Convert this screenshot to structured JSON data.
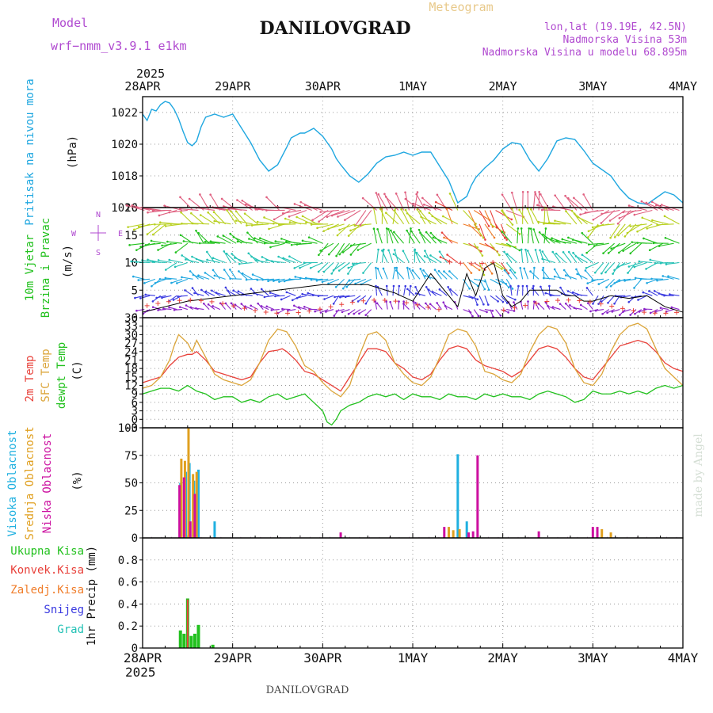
{
  "header": {
    "model_label": "Model",
    "model_name": "wrf−nmm_v3.9.1 e1km",
    "title": "DANILOVGRAD",
    "meteogram_label": "Meteogram",
    "location_line": "lon,lat (19.19E, 42.5N)",
    "altitude_line": "Nadmorska Visina 53m",
    "model_altitude_line": "Nadmorska Visina u modelu 68.895m",
    "year_top": "2025"
  },
  "footer": {
    "year_bottom": "2025",
    "station_label": "DANILOVGRAD",
    "watermark": "made by Angel"
  },
  "colors": {
    "pressure": "#1fa7e0",
    "temp2m": "#e8413a",
    "sfc_temp": "#dba53a",
    "dewpt": "#22c11e",
    "cloud_high": "#1fb0e0",
    "cloud_mid": "#e0a020",
    "cloud_low": "#cc10a0",
    "precip_total": "#22c11e",
    "precip_conv": "#e8413a",
    "precip_frozen": "#f07d2a",
    "precip_snow": "#3a3ae0",
    "precip_hail": "#22c1b5",
    "wind_label": "#22c11e",
    "wind_gust": "#e8413a",
    "wind_speed": "#000000",
    "compass": "#b04ad0"
  },
  "chart_data": [
    {
      "type": "line",
      "panel": "pressure",
      "ylabel_lines": [
        "Pritisak na nivou mora",
        "(hPa)"
      ],
      "ylim": [
        1016,
        1023
      ],
      "yticks": [
        1016,
        1018,
        1020,
        1022
      ],
      "x_unit": "days since 28APR 2025 00UTC",
      "xlim": [
        0,
        6
      ],
      "xticks": [
        "28APR",
        "29APR",
        "30APR",
        "1MAY",
        "2MAY",
        "3MAY",
        "4MAY"
      ],
      "series": [
        {
          "name": "Pritisak na nivou mora",
          "x": [
            0,
            0.05,
            0.1,
            0.15,
            0.2,
            0.25,
            0.3,
            0.35,
            0.4,
            0.45,
            0.5,
            0.55,
            0.6,
            0.65,
            0.7,
            0.8,
            0.9,
            1.0,
            1.1,
            1.2,
            1.3,
            1.4,
            1.5,
            1.6,
            1.65,
            1.75,
            1.8,
            1.9,
            2.0,
            2.1,
            2.15,
            2.2,
            2.3,
            2.4,
            2.5,
            2.6,
            2.7,
            2.8,
            2.9,
            3.0,
            3.1,
            3.2,
            3.3,
            3.4,
            3.5,
            3.6,
            3.65,
            3.7,
            3.8,
            3.9,
            4.0,
            4.1,
            4.2,
            4.3,
            4.4,
            4.5,
            4.6,
            4.7,
            4.8,
            4.9,
            5.0,
            5.1,
            5.2,
            5.3,
            5.4,
            5.5,
            5.6,
            5.7,
            5.8,
            5.9,
            6.0
          ],
          "y": [
            1021.9,
            1021.5,
            1022.2,
            1022.1,
            1022.5,
            1022.7,
            1022.6,
            1022.2,
            1021.6,
            1020.8,
            1020.1,
            1019.9,
            1020.2,
            1021.1,
            1021.7,
            1021.9,
            1021.7,
            1021.9,
            1021.0,
            1020.1,
            1019.0,
            1018.3,
            1018.7,
            1019.8,
            1020.4,
            1020.7,
            1020.7,
            1021.0,
            1020.5,
            1019.7,
            1019.1,
            1018.7,
            1018.0,
            1017.6,
            1018.1,
            1018.8,
            1019.2,
            1019.3,
            1019.5,
            1019.3,
            1019.5,
            1019.5,
            1018.6,
            1017.7,
            1016.3,
            1016.7,
            1017.4,
            1017.9,
            1018.5,
            1019.0,
            1019.7,
            1020.1,
            1020.0,
            1019.0,
            1018.3,
            1019.1,
            1020.2,
            1020.4,
            1020.3,
            1019.6,
            1018.8,
            1018.4,
            1018.0,
            1017.2,
            1016.6,
            1016.3,
            1016.2,
            1016.6,
            1017.0,
            1016.8,
            1016.3
          ]
        }
      ]
    },
    {
      "type": "line",
      "panel": "wind",
      "ylabel_lines": [
        "10m Vjetar",
        "Brzina i Pravac",
        "(m/s)"
      ],
      "compass": {
        "w": "W",
        "e": "E",
        "n": "N",
        "s": "S"
      },
      "ylim": [
        0,
        20
      ],
      "yticks": [
        0,
        5,
        10,
        15,
        20
      ],
      "xlim": [
        0,
        6
      ],
      "series": [
        {
          "name": "10m Vjetar Brzina",
          "x": [
            0,
            0.5,
            1.0,
            1.5,
            2.0,
            2.5,
            2.8,
            3.0,
            3.2,
            3.4,
            3.5,
            3.6,
            3.7,
            3.8,
            3.9,
            4.0,
            4.1,
            4.2,
            4.3,
            4.5,
            4.6,
            4.7,
            4.8,
            4.9,
            5.0,
            5.2,
            5.4,
            5.6,
            5.8,
            6.0
          ],
          "y": [
            1,
            3,
            4,
            5,
            6,
            6,
            4.5,
            3,
            8,
            4,
            2,
            8,
            4,
            9,
            10,
            4,
            2,
            3,
            5,
            5,
            5,
            4,
            4,
            3,
            3,
            4,
            3.5,
            4,
            2,
            1
          ]
        }
      ],
      "direction_sample": {
        "x": [
          0.05,
          0.55,
          1.05,
          1.55,
          2.05,
          2.55,
          3.05,
          3.55,
          4.05,
          4.55,
          5.05,
          5.55
        ],
        "dir_deg": [
          280,
          240,
          250,
          270,
          300,
          200,
          230,
          50,
          200,
          240,
          300,
          270
        ]
      }
    },
    {
      "type": "line",
      "panel": "temperature",
      "ylabel_lines": [
        "2m Temp",
        "SFC Temp",
        "dewpt Temp",
        "(C)"
      ],
      "ylim": [
        -3,
        36
      ],
      "yticks": [
        -3,
        0,
        3,
        6,
        9,
        12,
        15,
        18,
        21,
        24,
        27,
        30,
        33,
        36
      ],
      "xlim": [
        0,
        6
      ],
      "series": [
        {
          "name": "2m Temp",
          "x": [
            0,
            0.1,
            0.2,
            0.3,
            0.4,
            0.5,
            0.55,
            0.6,
            0.7,
            0.8,
            0.9,
            1.0,
            1.1,
            1.2,
            1.3,
            1.4,
            1.5,
            1.55,
            1.6,
            1.7,
            1.8,
            1.9,
            2.0,
            2.1,
            2.2,
            2.3,
            2.4,
            2.5,
            2.6,
            2.7,
            2.8,
            2.9,
            3.0,
            3.1,
            3.2,
            3.3,
            3.4,
            3.5,
            3.6,
            3.7,
            3.8,
            3.9,
            4.0,
            4.1,
            4.2,
            4.3,
            4.4,
            4.5,
            4.6,
            4.7,
            4.8,
            4.9,
            5.0,
            5.1,
            5.2,
            5.3,
            5.4,
            5.5,
            5.6,
            5.7,
            5.8,
            5.9,
            6.0
          ],
          "y": [
            13,
            14,
            15,
            19,
            22,
            23,
            23,
            24,
            21,
            17,
            16,
            15,
            14,
            15,
            20,
            24,
            24.5,
            25,
            24,
            21,
            17,
            16,
            14,
            12,
            10,
            15,
            20,
            25,
            25,
            24,
            20,
            18,
            15,
            14,
            16,
            21,
            25,
            26,
            25,
            21,
            19,
            18,
            17,
            15,
            17,
            21,
            25,
            26,
            25,
            22,
            18,
            15,
            14,
            18,
            22,
            26,
            27,
            28,
            27,
            24,
            20,
            18,
            17
          ]
        },
        {
          "name": "SFC Temp",
          "x": [
            0,
            0.1,
            0.2,
            0.3,
            0.35,
            0.4,
            0.5,
            0.55,
            0.6,
            0.7,
            0.8,
            0.9,
            1.0,
            1.1,
            1.2,
            1.3,
            1.4,
            1.45,
            1.5,
            1.6,
            1.7,
            1.8,
            1.9,
            2.0,
            2.1,
            2.2,
            2.3,
            2.4,
            2.5,
            2.6,
            2.7,
            2.8,
            2.9,
            3.0,
            3.1,
            3.2,
            3.3,
            3.4,
            3.5,
            3.6,
            3.7,
            3.8,
            3.9,
            4.0,
            4.1,
            4.2,
            4.3,
            4.4,
            4.5,
            4.6,
            4.7,
            4.8,
            4.9,
            5.0,
            5.1,
            5.2,
            5.3,
            5.4,
            5.5,
            5.6,
            5.7,
            5.8,
            5.9,
            6.0
          ],
          "y": [
            11,
            12,
            15,
            21,
            26,
            30,
            27,
            24,
            28,
            22,
            16,
            14,
            13,
            12,
            14,
            20,
            28,
            30,
            32,
            31,
            26,
            19,
            17,
            13,
            10,
            8,
            12,
            22,
            30,
            31,
            28,
            20,
            16,
            13,
            12,
            15,
            22,
            30,
            32,
            31,
            26,
            17,
            16,
            14,
            13,
            16,
            24,
            30,
            33,
            32,
            27,
            18,
            13,
            12,
            16,
            24,
            30,
            33,
            34,
            32,
            25,
            18,
            15,
            12
          ]
        },
        {
          "name": "dewpt Temp",
          "x": [
            0,
            0.1,
            0.2,
            0.3,
            0.4,
            0.5,
            0.6,
            0.7,
            0.8,
            0.9,
            1.0,
            1.1,
            1.2,
            1.3,
            1.4,
            1.5,
            1.6,
            1.7,
            1.8,
            1.9,
            2.0,
            2.05,
            2.1,
            2.15,
            2.2,
            2.3,
            2.4,
            2.5,
            2.6,
            2.7,
            2.8,
            2.9,
            3.0,
            3.1,
            3.2,
            3.3,
            3.4,
            3.5,
            3.6,
            3.7,
            3.8,
            3.9,
            4.0,
            4.1,
            4.2,
            4.3,
            4.4,
            4.5,
            4.6,
            4.7,
            4.8,
            4.9,
            5.0,
            5.1,
            5.2,
            5.3,
            5.4,
            5.5,
            5.6,
            5.7,
            5.8,
            5.9,
            6.0
          ],
          "y": [
            9,
            10,
            11,
            11,
            10,
            12,
            10,
            9,
            7,
            8,
            8,
            6,
            7,
            6,
            8,
            9,
            7,
            8,
            9,
            6,
            3,
            -1,
            -2,
            0,
            3,
            5,
            6,
            8,
            9,
            8,
            9,
            7,
            9,
            8,
            8,
            7,
            9,
            8,
            8,
            7,
            9,
            8,
            9,
            8,
            8,
            7,
            9,
            10,
            9,
            8,
            6,
            7,
            10,
            9,
            9,
            10,
            9,
            10,
            9,
            11,
            12,
            11,
            12
          ]
        }
      ]
    },
    {
      "type": "bar",
      "panel": "cloud",
      "ylabel_lines": [
        "Visoka Oblacnost",
        "Srednja Oblacnost",
        "Niska Oblacnost",
        "(%)"
      ],
      "ylim": [
        0,
        100
      ],
      "yticks": [
        0,
        25,
        50,
        75,
        100
      ],
      "xlim": [
        0,
        6
      ],
      "series": [
        {
          "name": "Visoka Oblacnost",
          "x": [
            0.42,
            0.48,
            0.52,
            0.57,
            0.62,
            0.8,
            3.5,
            3.6
          ],
          "values": [
            50,
            60,
            68,
            52,
            62,
            15,
            76,
            15
          ]
        },
        {
          "name": "Srednja Oblacnost",
          "x": [
            0.43,
            0.47,
            0.51,
            0.56,
            0.6,
            3.4,
            3.45,
            3.52,
            5.1,
            5.2
          ],
          "values": [
            72,
            70,
            100,
            58,
            60,
            10,
            7,
            8,
            8,
            5
          ]
        },
        {
          "name": "Niska Oblacnost",
          "x": [
            0.41,
            0.46,
            0.53,
            0.58,
            2.2,
            3.35,
            3.62,
            3.67,
            3.72,
            4.4,
            5.0,
            5.05
          ],
          "values": [
            48,
            55,
            15,
            40,
            5,
            10,
            5,
            6,
            75,
            6,
            10,
            10
          ]
        }
      ]
    },
    {
      "type": "bar",
      "panel": "precip",
      "ylabel_lines": [
        "1hr Precip (mm)"
      ],
      "legend": [
        "Ukupna Kisa",
        "Konvek.Kisa",
        "Zaledj.Kisa",
        "Snijeg",
        "Grad"
      ],
      "ylim": [
        0,
        1.0
      ],
      "yticks": [
        0,
        0.2,
        0.4,
        0.6,
        0.8
      ],
      "xlim": [
        0,
        6
      ],
      "series": [
        {
          "name": "Ukupna Kisa",
          "x": [
            0.42,
            0.46,
            0.5,
            0.54,
            0.58,
            0.62,
            0.78
          ],
          "values": [
            0.16,
            0.13,
            0.45,
            0.11,
            0.13,
            0.21,
            0.03
          ]
        },
        {
          "name": "Konvek.Kisa",
          "x": [
            0.5
          ],
          "values": [
            0.44
          ]
        }
      ]
    }
  ]
}
